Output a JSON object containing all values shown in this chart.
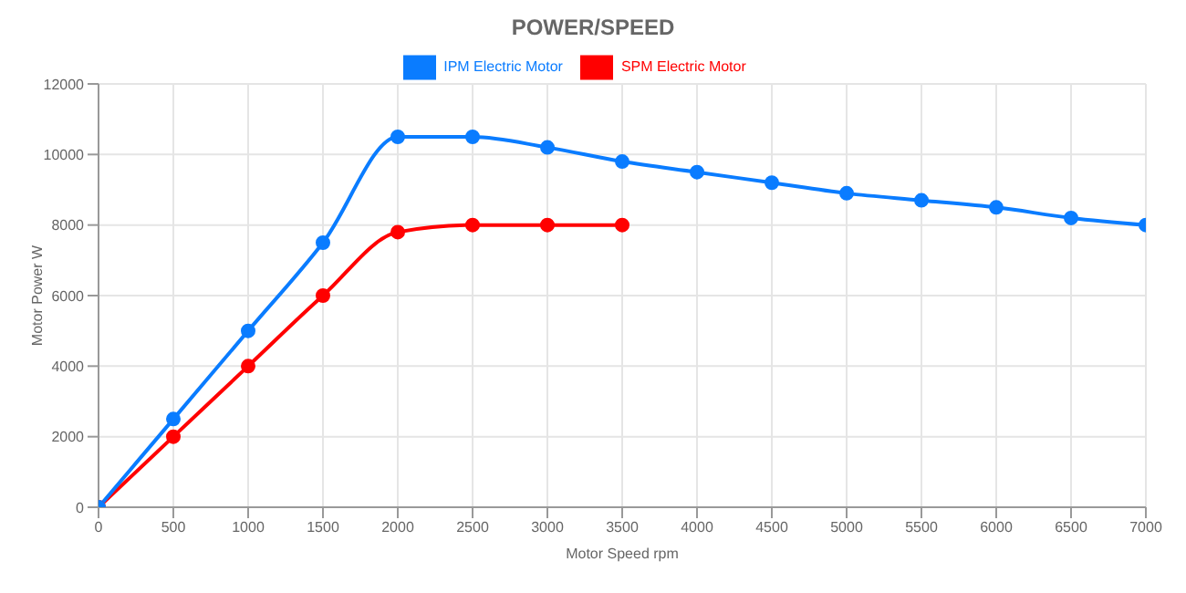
{
  "chart_data": {
    "type": "line",
    "title": "POWER/SPEED",
    "xlabel": "Motor Speed rpm",
    "ylabel": "Motor Power W",
    "x": [
      0,
      500,
      1000,
      1500,
      2000,
      2500,
      3000,
      3500,
      4000,
      4500,
      5000,
      5500,
      6000,
      6500,
      7000
    ],
    "series": [
      {
        "name": "SPM Electric Motor",
        "color": "#ff0000",
        "x": [
          0,
          500,
          1000,
          1500,
          2000,
          2500,
          3000,
          3500
        ],
        "values": [
          0,
          2000,
          4000,
          6000,
          7800,
          8000,
          8000,
          8000
        ]
      },
      {
        "name": "IPM Electric Motor",
        "color": "#0a7cff",
        "values": [
          0,
          2500,
          5000,
          7500,
          10500,
          10500,
          10200,
          9800,
          9500,
          9200,
          8900,
          8700,
          8500,
          8200,
          8000
        ]
      }
    ],
    "xlim": [
      0,
      7000
    ],
    "xticks": [
      0,
      500,
      1000,
      1500,
      2000,
      2500,
      3000,
      3500,
      4000,
      4500,
      5000,
      5500,
      6000,
      6500,
      7000
    ],
    "ylim": [
      0,
      12000
    ],
    "yticks": [
      0,
      2000,
      4000,
      6000,
      8000,
      10000,
      12000
    ],
    "grid": true,
    "legend": "top",
    "marker": "circle",
    "line_style": "solid"
  }
}
